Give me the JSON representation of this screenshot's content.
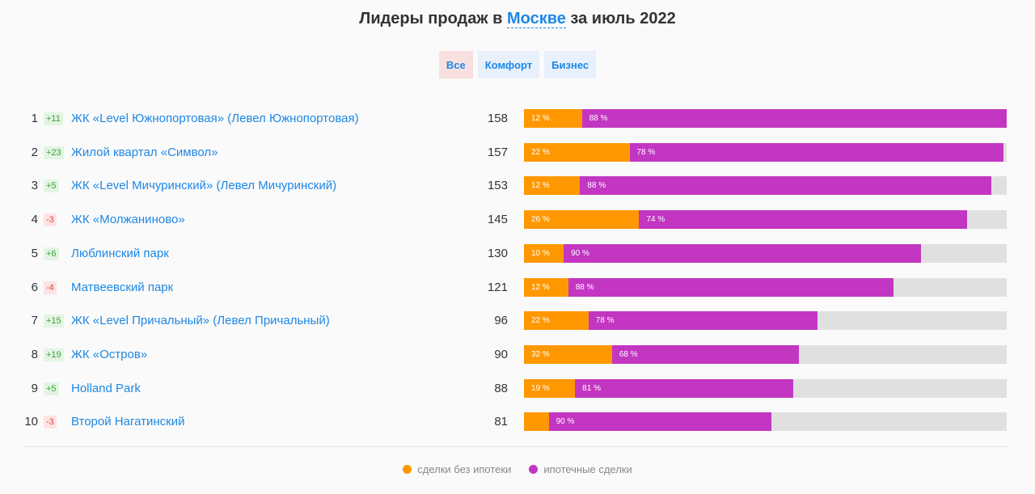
{
  "header": {
    "title_prefix": "Лидеры продаж в",
    "city": "Москве",
    "title_suffix": "за июль 2022"
  },
  "tabs": [
    {
      "label": "Все",
      "active": true
    },
    {
      "label": "Комфорт",
      "active": false
    },
    {
      "label": "Бизнес",
      "active": false
    }
  ],
  "colors": {
    "no_mortgage": "#ff9800",
    "mortgage": "#c236c2",
    "link": "#1e88e5"
  },
  "chart_data": {
    "type": "bar",
    "stacked": true,
    "orientation": "horizontal",
    "title": "Лидеры продаж в Москве за июль 2022",
    "xlim": [
      0,
      158
    ],
    "categories": [
      "ЖК «Level Южнопортовая» (Левел Южнопортовая)",
      "Жилой квартал «Символ»",
      "ЖК «Level Мичуринский» (Левел Мичуринский)",
      "ЖК «Молжаниново»",
      "Люблинский парк",
      "Матвеевский парк",
      "ЖК «Level Причальный» (Левел Причальный)",
      "ЖК «Остров»",
      "Holland Park",
      "Второй Нагатинский"
    ],
    "rows": [
      {
        "rank": "1",
        "delta": "+11",
        "name": "ЖК «Level Южнопортовая» (Левел Южнопортовая)",
        "total": "158",
        "value": 158,
        "share_a": 12,
        "share_b": 88,
        "label_a": "12 %",
        "label_b": "88 %"
      },
      {
        "rank": "2",
        "delta": "+23",
        "name": "Жилой квартал «Символ»",
        "total": "157",
        "value": 157,
        "share_a": 22,
        "share_b": 78,
        "label_a": "22 %",
        "label_b": "78 %"
      },
      {
        "rank": "3",
        "delta": "+5",
        "name": "ЖК «Level Мичуринский» (Левел Мичуринский)",
        "total": "153",
        "value": 153,
        "share_a": 12,
        "share_b": 88,
        "label_a": "12 %",
        "label_b": "88 %"
      },
      {
        "rank": "4",
        "delta": "-3",
        "name": "ЖК «Молжаниново»",
        "total": "145",
        "value": 145,
        "share_a": 26,
        "share_b": 74,
        "label_a": "26 %",
        "label_b": "74 %"
      },
      {
        "rank": "5",
        "delta": "+6",
        "name": "Люблинский парк",
        "total": "130",
        "value": 130,
        "share_a": 10,
        "share_b": 90,
        "label_a": "10 %",
        "label_b": "90 %"
      },
      {
        "rank": "6",
        "delta": "-4",
        "name": "Матвеевский парк",
        "total": "121",
        "value": 121,
        "share_a": 12,
        "share_b": 88,
        "label_a": "12 %",
        "label_b": "88 %"
      },
      {
        "rank": "7",
        "delta": "+15",
        "name": "ЖК «Level Причальный» (Левел Причальный)",
        "total": "96",
        "value": 96,
        "share_a": 22,
        "share_b": 78,
        "label_a": "22 %",
        "label_b": "78 %"
      },
      {
        "rank": "8",
        "delta": "+19",
        "name": "ЖК «Остров»",
        "total": "90",
        "value": 90,
        "share_a": 32,
        "share_b": 68,
        "label_a": "32 %",
        "label_b": "68 %"
      },
      {
        "rank": "9",
        "delta": "+5",
        "name": "Holland Park",
        "total": "88",
        "value": 88,
        "share_a": 19,
        "share_b": 81,
        "label_a": "19 %",
        "label_b": "81 %"
      },
      {
        "rank": "10",
        "delta": "-3",
        "name": "Второй Нагатинский",
        "total": "81",
        "value": 81,
        "share_a": 10,
        "share_b": 90,
        "label_a": "",
        "label_b": "90 %"
      }
    ],
    "legend": [
      {
        "label": "сделки без ипотеки",
        "color": "#ff9800"
      },
      {
        "label": "ипотечные сделки",
        "color": "#c236c2"
      }
    ]
  }
}
